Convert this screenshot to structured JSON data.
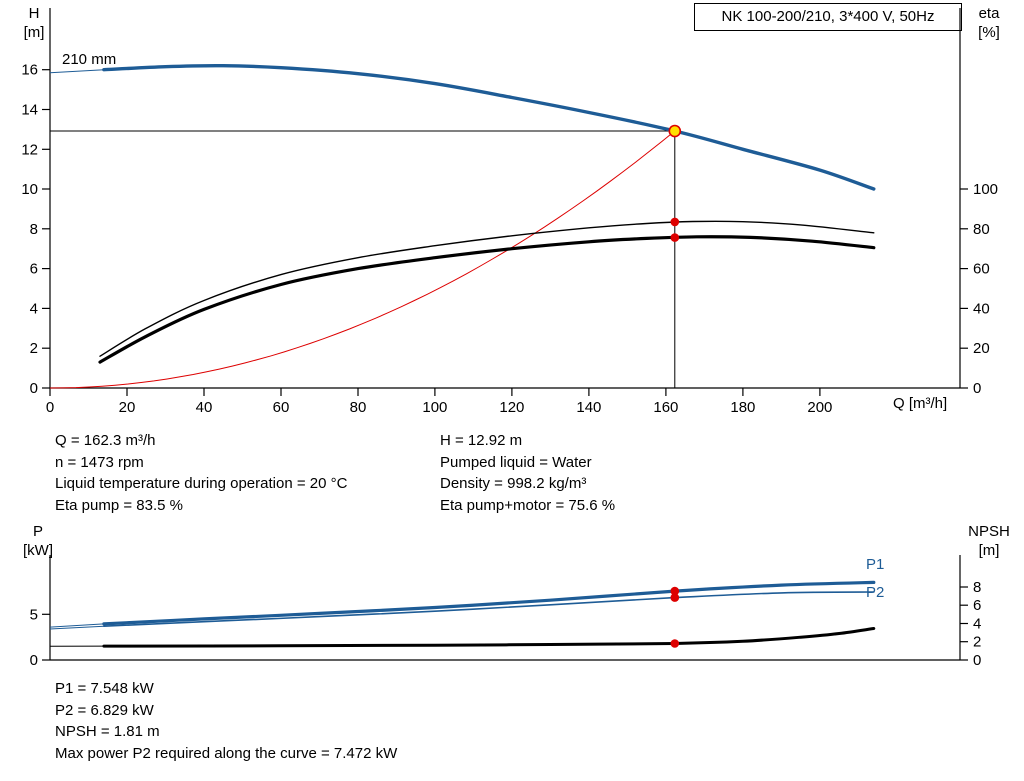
{
  "colors": {
    "curve_blue": "#1e5c96",
    "red": "#dd0000",
    "duty_fill": "#ffe000",
    "black": "#000000"
  },
  "operating_data_left": [
    "Q = 162.3 m³/h",
    "n = 1473 rpm",
    "Liquid temperature during operation = 20 °C",
    "Eta pump = 83.5 %"
  ],
  "operating_data_right": [
    "H = 12.92 m",
    "Pumped liquid = Water",
    "Density = 998.2 kg/m³",
    "Eta pump+motor = 75.6 %"
  ],
  "operating_data_bottom": [
    "P1 = 7.548 kW",
    "P2 = 6.829 kW",
    "NPSH = 1.81 m",
    "Max power P2 required along the curve = 7.472 kW"
  ],
  "chart_data": [
    {
      "id": "hq-chart",
      "type": "line",
      "title": "NK 100-200/210, 3*400 V, 50Hz",
      "x": {
        "label": "Q [m³/h]",
        "min": 0,
        "max": 236.4,
        "ticks": [
          0,
          20,
          40,
          60,
          80,
          100,
          120,
          140,
          160,
          180,
          200
        ]
      },
      "y_left": {
        "label": "H",
        "unit": "[m]",
        "min": 0,
        "max": 19.1,
        "ticks": [
          0,
          2,
          4,
          6,
          8,
          10,
          12,
          14,
          16
        ]
      },
      "y_right": {
        "label": "eta",
        "unit": "[%]",
        "min": 0,
        "max": 191,
        "ticks": [
          0,
          20,
          40,
          60,
          80,
          100
        ]
      },
      "annotations": [
        {
          "text": "210 mm"
        }
      ],
      "duty_point": {
        "q": 162.3,
        "h": 12.92
      },
      "system_curve": {
        "color": "red",
        "width": 1
      },
      "series": [
        {
          "name": "pump-head-curve-210mm",
          "axis": "left",
          "color": "blue",
          "width": 3.4,
          "lead_in": [
            [
              0,
              15.85
            ]
          ],
          "points": [
            [
              14,
              16.0
            ],
            [
              30,
              16.15
            ],
            [
              45,
              16.2
            ],
            [
              60,
              16.1
            ],
            [
              80,
              15.8
            ],
            [
              100,
              15.3
            ],
            [
              120,
              14.6
            ],
            [
              140,
              13.85
            ],
            [
              162.3,
              12.92
            ],
            [
              180,
              12.0
            ],
            [
              200,
              10.95
            ],
            [
              214,
              10.0
            ]
          ]
        },
        {
          "name": "eta-pump-curve",
          "axis": "right",
          "color": "#000000",
          "width": 1.4,
          "points": [
            [
              13,
              16
            ],
            [
              25,
              30
            ],
            [
              40,
              44
            ],
            [
              60,
              57
            ],
            [
              80,
              65.5
            ],
            [
              100,
              71.5
            ],
            [
              120,
              76.5
            ],
            [
              140,
              80.5
            ],
            [
              155,
              82.7
            ],
            [
              167,
              83.7
            ],
            [
              180,
              83.6
            ],
            [
              195,
              82
            ],
            [
              214,
              78
            ]
          ]
        },
        {
          "name": "eta-pump-motor-curve",
          "axis": "right",
          "color": "#000000",
          "width": 3.2,
          "points": [
            [
              13,
              13
            ],
            [
              25,
              26
            ],
            [
              40,
              39.5
            ],
            [
              60,
              52
            ],
            [
              80,
              60
            ],
            [
              100,
              65.5
            ],
            [
              120,
              70
            ],
            [
              140,
              73.5
            ],
            [
              155,
              75.2
            ],
            [
              168,
              76
            ],
            [
              182,
              75.7
            ],
            [
              198,
              73.8
            ],
            [
              214,
              70.5
            ]
          ]
        }
      ],
      "markers": [
        {
          "q": 162.3,
          "v": 83.5,
          "axis": "right"
        },
        {
          "q": 162.3,
          "v": 75.6,
          "axis": "right"
        }
      ]
    },
    {
      "id": "power-npsh-chart",
      "type": "line",
      "x": {
        "label": "",
        "min": 0,
        "max": 236.4,
        "ticks": []
      },
      "y_left": {
        "label": "P",
        "unit": "[kW]",
        "min": 0,
        "max": 11.5,
        "ticks": [
          0,
          5
        ]
      },
      "y_right": {
        "label": "NPSH",
        "unit": "[m]",
        "min": 0,
        "max": 11.5,
        "ticks": [
          0,
          2,
          4,
          6,
          8
        ]
      },
      "series": [
        {
          "name": "p1-power-curve",
          "label": "P1",
          "axis": "left",
          "color": "blue",
          "width": 3.2,
          "lead_in": [
            [
              0,
              3.6
            ]
          ],
          "points": [
            [
              14,
              3.95
            ],
            [
              40,
              4.5
            ],
            [
              70,
              5.1
            ],
            [
              100,
              5.75
            ],
            [
              130,
              6.55
            ],
            [
              162.3,
              7.548
            ],
            [
              190,
              8.2
            ],
            [
              214,
              8.5
            ]
          ]
        },
        {
          "name": "p2-power-curve",
          "label": "P2",
          "axis": "left",
          "color": "blue",
          "width": 1.6,
          "lead_in": [
            [
              0,
              3.4
            ]
          ],
          "points": [
            [
              14,
              3.7
            ],
            [
              40,
              4.2
            ],
            [
              70,
              4.75
            ],
            [
              100,
              5.35
            ],
            [
              130,
              6.05
            ],
            [
              162.3,
              6.829
            ],
            [
              190,
              7.35
            ],
            [
              214,
              7.45
            ]
          ]
        },
        {
          "name": "npsh-curve",
          "axis": "right",
          "color": "#000000",
          "width": 3,
          "lead_in": [
            [
              0,
              1.5
            ]
          ],
          "points": [
            [
              14,
              1.52
            ],
            [
              60,
              1.55
            ],
            [
              100,
              1.62
            ],
            [
              130,
              1.7
            ],
            [
              162.3,
              1.81
            ],
            [
              180,
              2.05
            ],
            [
              195,
              2.5
            ],
            [
              205,
              2.9
            ],
            [
              214,
              3.45
            ]
          ]
        }
      ],
      "markers": [
        {
          "q": 162.3,
          "v": 7.548,
          "axis": "left"
        },
        {
          "q": 162.3,
          "v": 6.829,
          "axis": "left"
        },
        {
          "q": 162.3,
          "v": 1.81,
          "axis": "right"
        }
      ]
    }
  ]
}
